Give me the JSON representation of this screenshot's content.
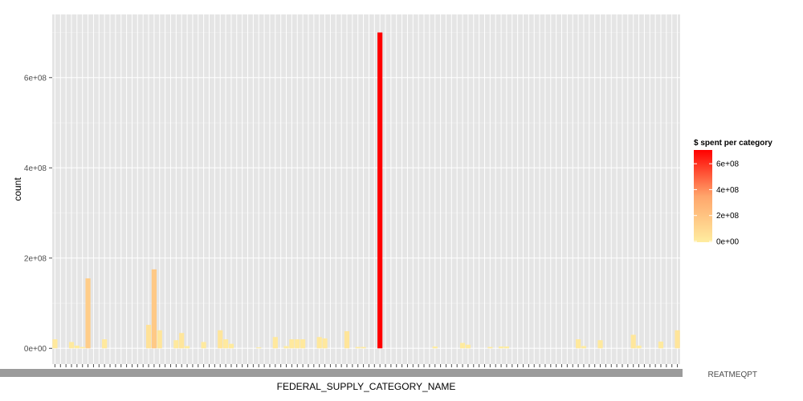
{
  "chart_data": {
    "type": "bar",
    "xlabel": "FEDERAL_SUPPLY_CATEGORY_NAME",
    "ylabel": "count",
    "ylim": [
      -35000000,
      740000000
    ],
    "y_ticks": [
      0,
      200000000,
      400000000,
      600000000
    ],
    "y_tick_labels": [
      "0e+00",
      "2e+08",
      "4e+08",
      "6e+08"
    ],
    "grid": true,
    "legend": {
      "title": "$ spent per category",
      "position": "right",
      "min": 0,
      "max": 700000000,
      "low_color": "#ffeda0",
      "high_color": "#ff0000",
      "ticks": [
        0,
        200000000,
        400000000,
        600000000
      ],
      "tick_labels": [
        "0e+00",
        "2e+08",
        "4e+08",
        "6e+08"
      ]
    },
    "x_tick_labels_visible": [
      "REATMEQPT"
    ],
    "values": [
      20000000,
      0,
      0,
      14000000,
      6000000,
      3000000,
      155000000,
      0,
      0,
      20000000,
      0,
      0,
      0,
      0,
      0,
      0,
      0,
      52000000,
      175000000,
      40000000,
      0,
      0,
      18000000,
      34000000,
      5000000,
      0,
      0,
      14000000,
      0,
      0,
      40000000,
      20000000,
      10000000,
      0,
      0,
      0,
      0,
      2000000,
      0,
      0,
      25000000,
      0,
      5000000,
      20000000,
      20000000,
      20000000,
      0,
      0,
      25000000,
      22000000,
      0,
      0,
      0,
      38000000,
      0,
      3000000,
      3000000,
      0,
      0,
      700000000,
      0,
      0,
      0,
      0,
      0,
      0,
      0,
      0,
      0,
      4000000,
      0,
      0,
      0,
      0,
      12000000,
      8000000,
      0,
      0,
      0,
      3000000,
      0,
      4000000,
      4000000,
      0,
      0,
      0,
      0,
      0,
      0,
      0,
      0,
      0,
      0,
      0,
      0,
      20000000,
      5000000,
      0,
      0,
      18000000,
      0,
      0,
      0,
      0,
      0,
      30000000,
      6000000,
      0,
      0,
      0,
      15000000,
      0,
      0,
      40000000
    ]
  }
}
